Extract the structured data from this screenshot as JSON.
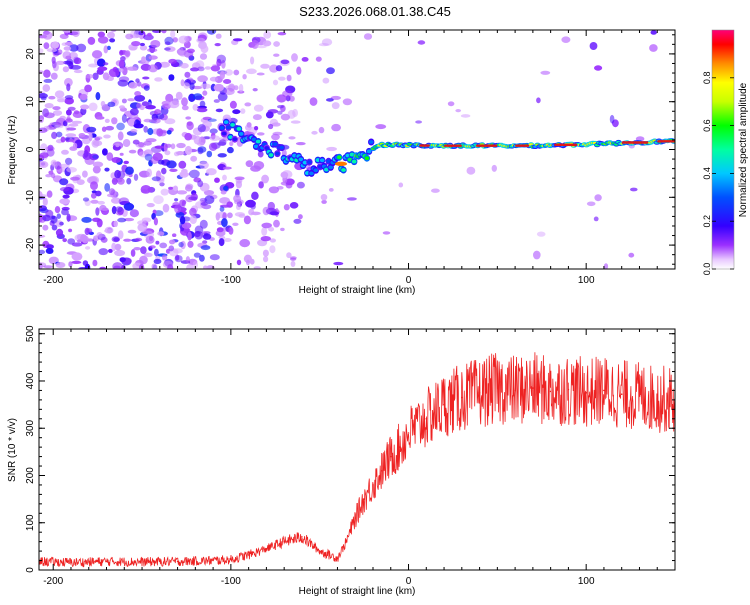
{
  "title": "S233.2026.068.01.38.C45",
  "chart_data": [
    {
      "type": "heatmap",
      "id": "spectrogram",
      "title": "S233.2026.068.01.38.C45",
      "xlabel": "Height of straight line (km)",
      "ylabel": "Frequency (Hz)",
      "xlim": [
        -208,
        150
      ],
      "ylim": [
        -25,
        25
      ],
      "xticks": [
        -200,
        -100,
        0,
        100
      ],
      "xtick_labels": [
        "-200",
        "-100",
        "0",
        "100"
      ],
      "yticks": [
        -20,
        -10,
        0,
        10,
        20
      ],
      "ytick_labels": [
        "-20",
        "-10",
        "0",
        "10",
        "20"
      ],
      "signal_trace": {
        "x": [
          -105,
          -95,
          -85,
          -75,
          -65,
          -55,
          -45,
          -38,
          -30,
          -22,
          -15,
          -5,
          10,
          30,
          50,
          70,
          90,
          110,
          130,
          150
        ],
        "y": [
          5,
          3,
          1,
          0,
          -2,
          -4,
          -3,
          -3,
          -2,
          0,
          1,
          1,
          0.8,
          0.8,
          0.8,
          0.8,
          1,
          1.2,
          1.5,
          1.8
        ]
      },
      "colorbar": {
        "label": "Normalized spectral amplitude",
        "range": [
          0,
          1
        ],
        "ticks": [
          0.0,
          0.2,
          0.4,
          0.6,
          0.8
        ],
        "tick_labels": [
          "0.0",
          "0.2",
          "0.4",
          "0.6",
          "0.8"
        ]
      }
    },
    {
      "type": "line",
      "id": "snr",
      "xlabel": "Height of straight line (km)",
      "ylabel": "SNR (10 * v/v)",
      "xlim": [
        -208,
        150
      ],
      "ylim": [
        0,
        510
      ],
      "xticks": [
        -200,
        -100,
        0,
        100
      ],
      "xtick_labels": [
        "-200",
        "-100",
        "0",
        "100"
      ],
      "yticks": [
        0,
        100,
        200,
        300,
        400,
        500
      ],
      "ytick_labels": [
        "0",
        "100",
        "200",
        "300",
        "400",
        "500"
      ],
      "series": [
        {
          "name": "SNR",
          "color": "#ee2222",
          "x": [
            -208,
            -190,
            -170,
            -150,
            -130,
            -110,
            -100,
            -90,
            -80,
            -70,
            -60,
            -50,
            -40,
            -35,
            -30,
            -25,
            -20,
            -15,
            -10,
            -5,
            0,
            10,
            20,
            30,
            40,
            50,
            60,
            70,
            80,
            90,
            100,
            110,
            120,
            130,
            140,
            150
          ],
          "y": [
            18,
            16,
            18,
            17,
            18,
            20,
            22,
            32,
            45,
            60,
            70,
            40,
            25,
            60,
            110,
            150,
            180,
            210,
            240,
            260,
            290,
            320,
            350,
            365,
            375,
            385,
            380,
            385,
            378,
            382,
            375,
            380,
            372,
            368,
            362,
            360
          ]
        }
      ]
    }
  ]
}
